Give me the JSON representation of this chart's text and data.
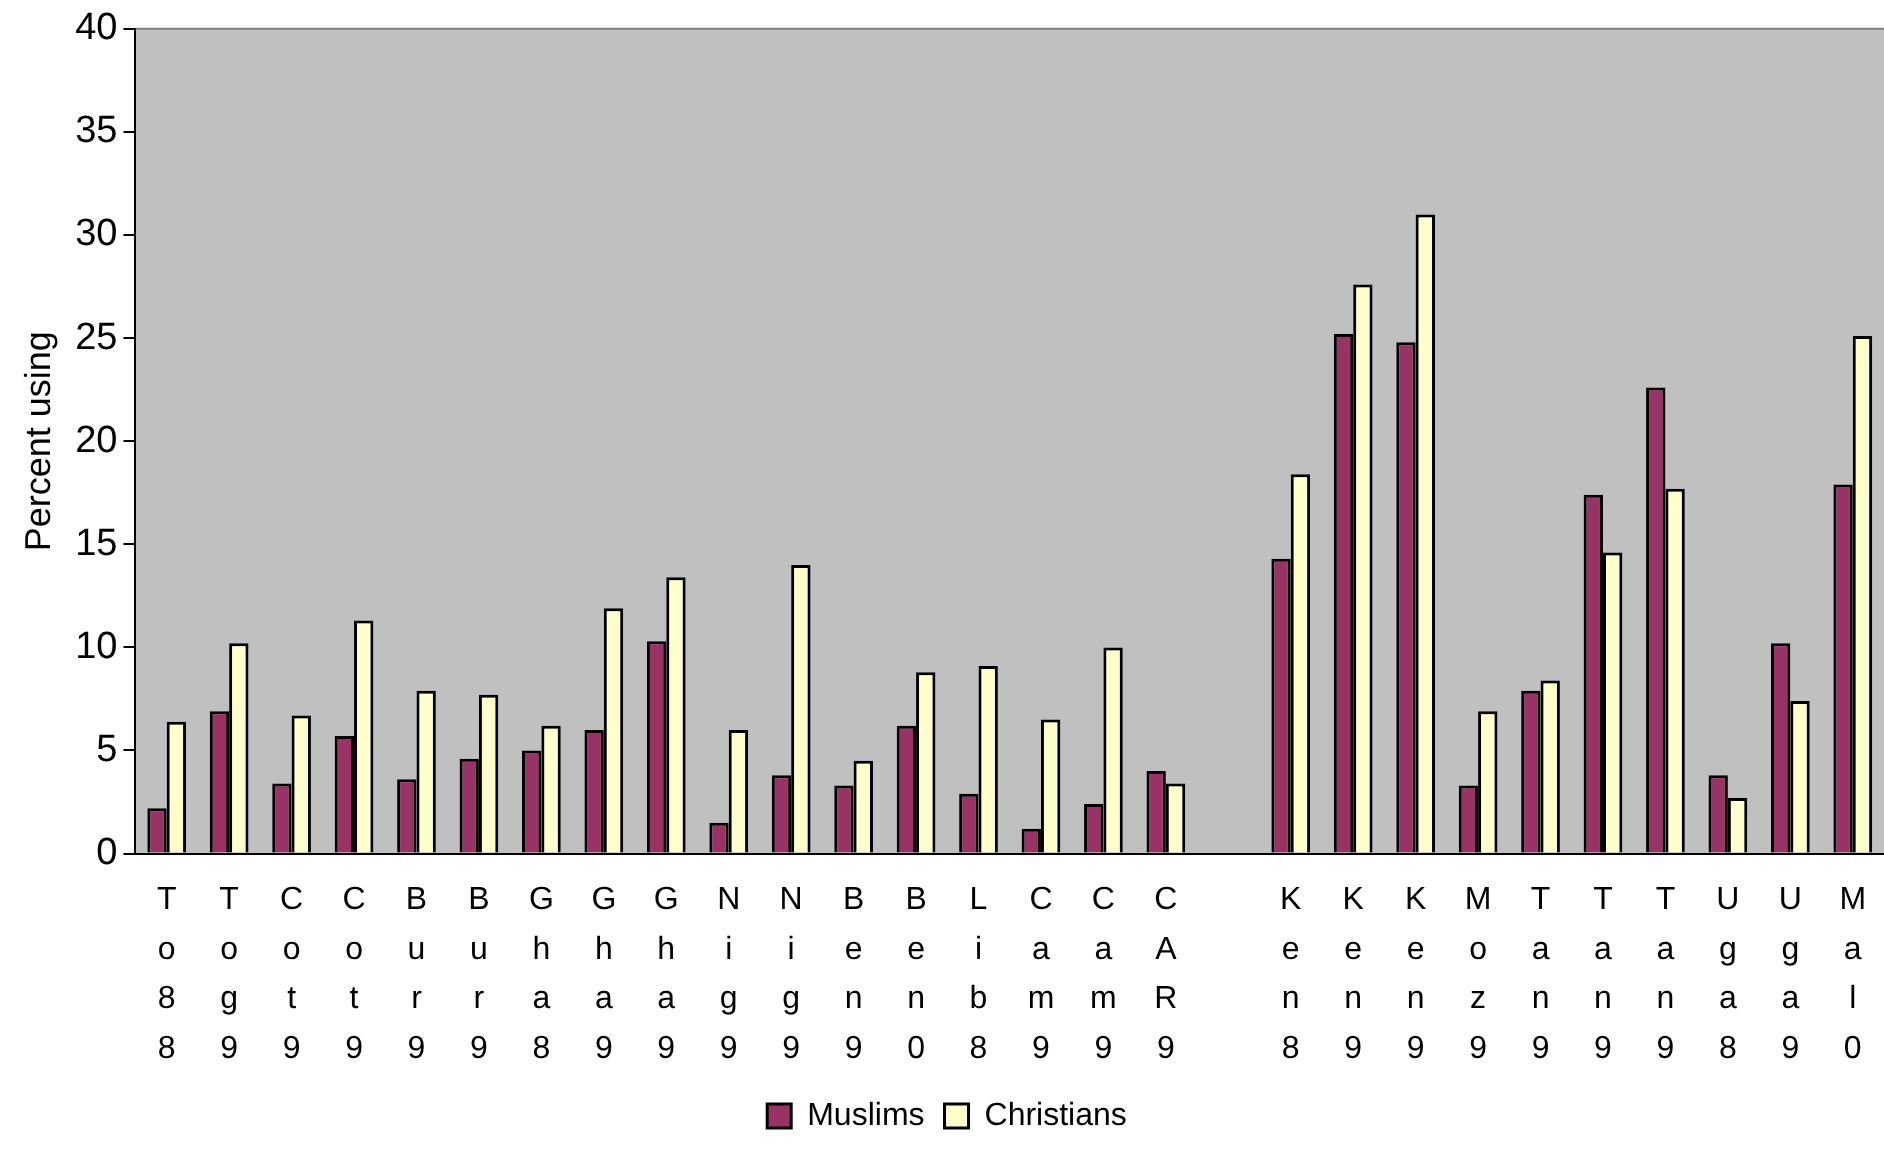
{
  "chart_data": {
    "type": "bar",
    "ylabel": "Percent using",
    "categories": [
      "To88",
      "Tog9",
      "Cot9",
      "Cot9",
      "Bur9",
      "Bur9",
      "Gha8",
      "Gha9",
      "Gha9",
      "Nig9",
      "Nig9",
      "Ben9",
      "Ben0",
      "Lib8",
      "Cam9",
      "Cam9",
      "CAR9",
      null,
      "Ken8",
      "Ken9",
      "Ken9",
      "Moz9",
      "Tan9",
      "Tan9",
      "Tan9",
      "Uga8",
      "Uga9",
      "Mal0"
    ],
    "series": [
      {
        "name": "Muslims",
        "color": "#993366",
        "values": [
          2.2,
          6.9,
          3.4,
          5.7,
          3.6,
          4.6,
          5.0,
          6.0,
          10.3,
          1.5,
          3.8,
          3.3,
          6.2,
          2.9,
          1.2,
          2.4,
          4.0,
          null,
          14.3,
          25.2,
          24.8,
          3.3,
          7.9,
          17.4,
          22.6,
          3.8,
          10.2,
          17.9
        ]
      },
      {
        "name": "Christians",
        "color": "#ffffcc",
        "values": [
          6.4,
          10.2,
          6.7,
          11.3,
          7.9,
          7.7,
          6.2,
          11.9,
          13.4,
          6.0,
          14.0,
          4.5,
          8.8,
          9.1,
          6.5,
          10.0,
          3.4,
          null,
          18.4,
          27.6,
          31.0,
          6.9,
          8.4,
          14.6,
          17.7,
          2.7,
          7.4,
          25.1
        ]
      }
    ],
    "ylim": [
      0,
      40
    ],
    "yticks": [
      0,
      5,
      10,
      15,
      20,
      25,
      30,
      35,
      40
    ],
    "grid": false,
    "legend": "bottom"
  }
}
